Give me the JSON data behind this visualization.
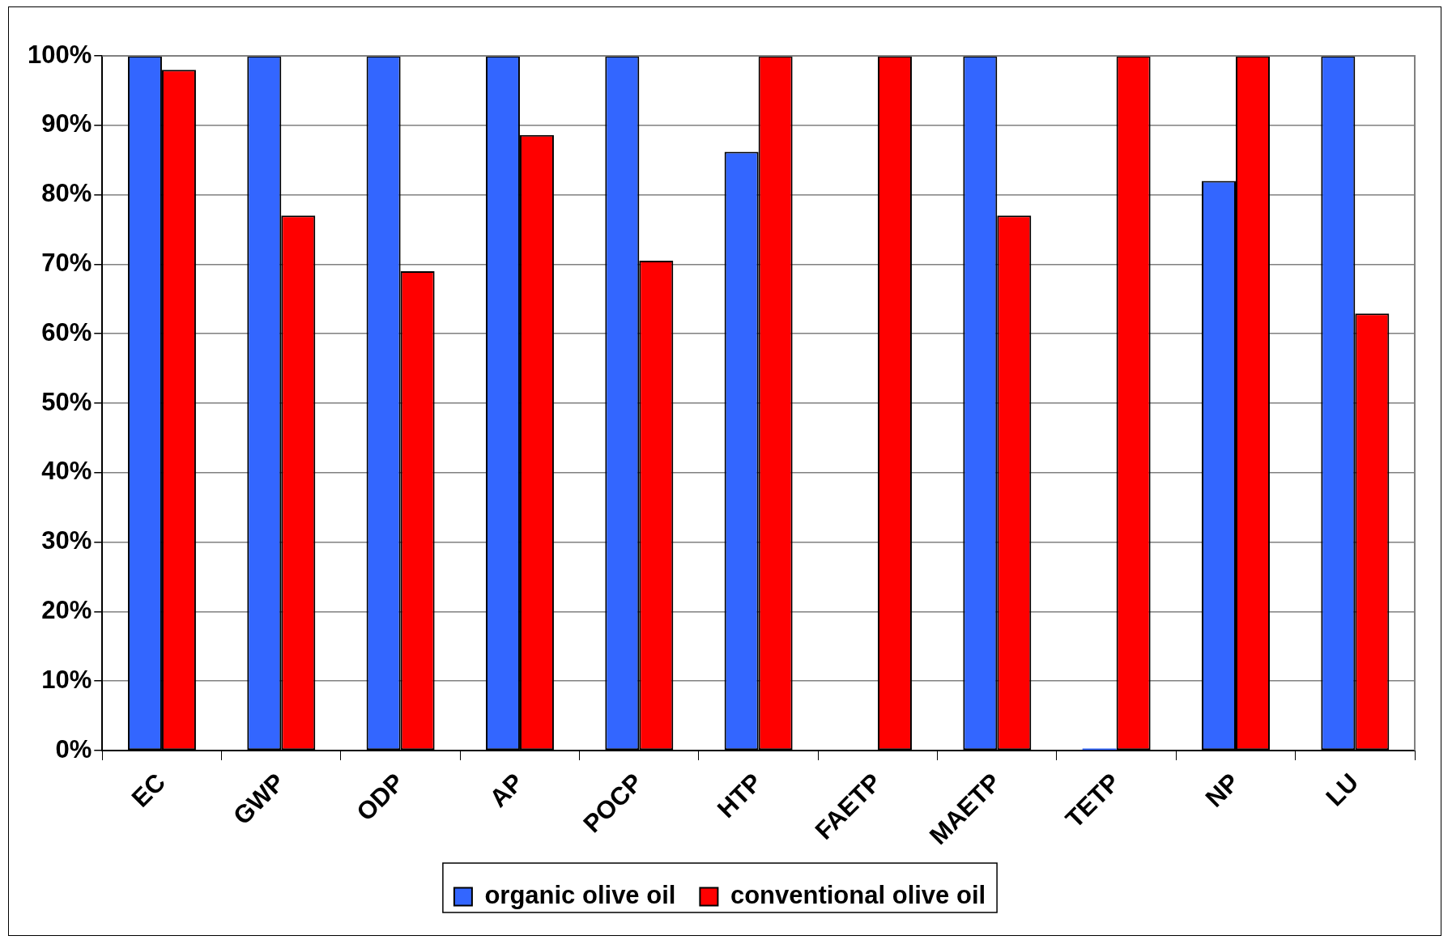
{
  "chart_data": {
    "type": "bar",
    "categories": [
      "EC",
      "GWP",
      "ODP",
      "AP",
      "POCP",
      "HTP",
      "FAETP",
      "MAETP",
      "TETP",
      "NP",
      "LU"
    ],
    "series": [
      {
        "name": "organic olive oil",
        "color": "#3366ff",
        "values": [
          100,
          100,
          100,
          100,
          100,
          86.2,
          0,
          100,
          0.3,
          82,
          100
        ]
      },
      {
        "name": "conventional olive oil",
        "color": "#ff0000",
        "values": [
          98,
          77,
          69,
          88.6,
          70.5,
          100,
          100,
          77,
          100,
          100,
          62.9
        ]
      }
    ],
    "ylim": [
      0,
      100
    ],
    "yticks": [
      {
        "value": 0,
        "label": "0%"
      },
      {
        "value": 10,
        "label": "10%"
      },
      {
        "value": 20,
        "label": "20%"
      },
      {
        "value": 30,
        "label": "30%"
      },
      {
        "value": 40,
        "label": "40%"
      },
      {
        "value": 50,
        "label": "50%"
      },
      {
        "value": 60,
        "label": "60%"
      },
      {
        "value": 70,
        "label": "70%"
      },
      {
        "value": 80,
        "label": "80%"
      },
      {
        "value": 90,
        "label": "90%"
      },
      {
        "value": 100,
        "label": "100%"
      }
    ],
    "grid": "y",
    "legend": "bottom"
  }
}
